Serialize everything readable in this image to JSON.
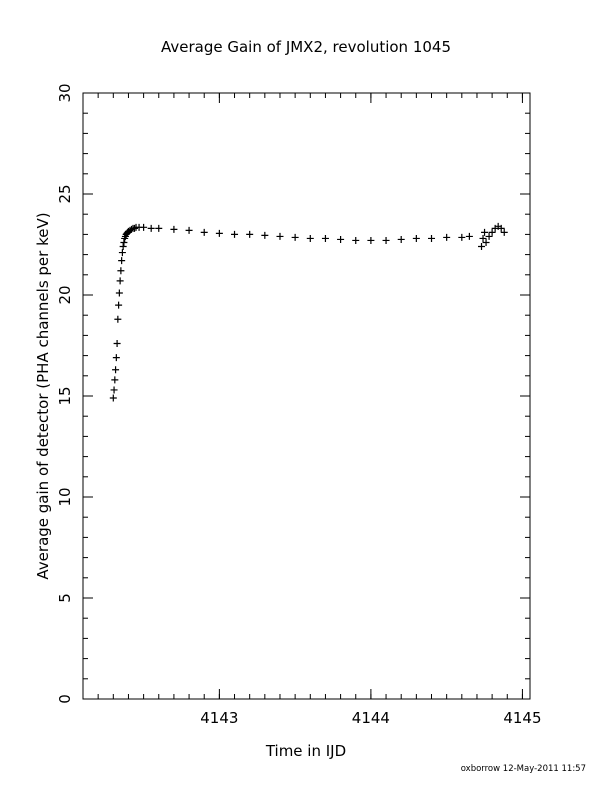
{
  "footer": {
    "stamp": "oxborrow 12-May-2011 11:57"
  },
  "chart_data": {
    "type": "scatter",
    "title": "Average Gain of JMX2, revolution 1045",
    "xlabel": "Time in IJD",
    "ylabel": "Average gain of detector (PHA channels per keV)",
    "xlim": [
      4142.1,
      4145.05
    ],
    "ylim": [
      0,
      30
    ],
    "x_ticks": [
      4143,
      4144,
      4145
    ],
    "y_ticks": [
      0,
      5,
      10,
      15,
      20,
      25,
      30
    ],
    "x_minor_step": 0.1,
    "y_minor_step": 1,
    "grid": false,
    "legend": "none",
    "marker": "plus",
    "marker_color": "#000000",
    "series": [
      {
        "x": [
          4142.3,
          4142.305,
          4142.31,
          4142.315,
          4142.32,
          4142.325,
          4142.33,
          4142.335,
          4142.34,
          4142.345,
          4142.35,
          4142.355,
          4142.36,
          4142.365,
          4142.37,
          4142.375,
          4142.38,
          4142.385,
          4142.39,
          4142.395,
          4142.4,
          4142.41,
          4142.42,
          4142.43,
          4142.44,
          4142.45,
          4142.47,
          4142.5,
          4142.55,
          4142.6,
          4142.7,
          4142.8,
          4142.9,
          4143.0,
          4143.1,
          4143.2,
          4143.3,
          4143.4,
          4143.5,
          4143.6,
          4143.7,
          4143.8,
          4143.9,
          4144.0,
          4144.1,
          4144.2,
          4144.3,
          4144.4,
          4144.5,
          4144.6,
          4144.65,
          4144.73,
          4144.74,
          4144.75,
          4144.76,
          4144.78,
          4144.8,
          4144.82,
          4144.84,
          4144.86,
          4144.88
        ],
        "y": [
          14.9,
          15.3,
          15.8,
          16.3,
          16.9,
          17.6,
          18.8,
          19.5,
          20.1,
          20.7,
          21.2,
          21.7,
          22.1,
          22.4,
          22.6,
          22.8,
          22.9,
          23.0,
          23.05,
          23.1,
          23.15,
          23.2,
          23.25,
          23.3,
          23.3,
          23.35,
          23.35,
          23.35,
          23.3,
          23.3,
          23.25,
          23.2,
          23.1,
          23.05,
          23.0,
          23.0,
          22.95,
          22.9,
          22.85,
          22.8,
          22.8,
          22.75,
          22.7,
          22.7,
          22.7,
          22.75,
          22.8,
          22.8,
          22.85,
          22.85,
          22.9,
          22.4,
          22.8,
          23.1,
          22.6,
          22.9,
          23.1,
          23.3,
          23.4,
          23.3,
          23.1
        ]
      }
    ]
  }
}
